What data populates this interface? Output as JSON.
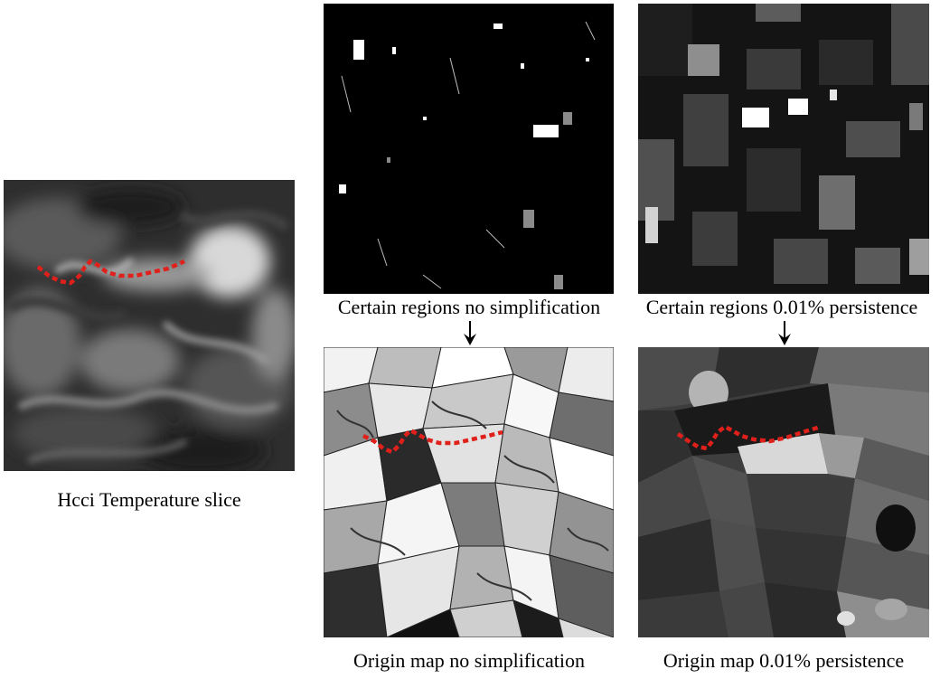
{
  "captions": {
    "temperature_slice": "Hcci Temperature slice",
    "certain_no_simplification": "Certain regions no simplification",
    "certain_persistence": "Certain regions 0.01% persistence",
    "origin_no_simplification": "Origin map no simplification",
    "origin_persistence": "Origin map 0.01% persistence"
  },
  "colors": {
    "path": "#e0201a",
    "background": "#ffffff",
    "arrow": "#000000"
  },
  "icons": {
    "arrow_left": "arrow-down-icon",
    "arrow_right": "arrow-down-icon"
  }
}
